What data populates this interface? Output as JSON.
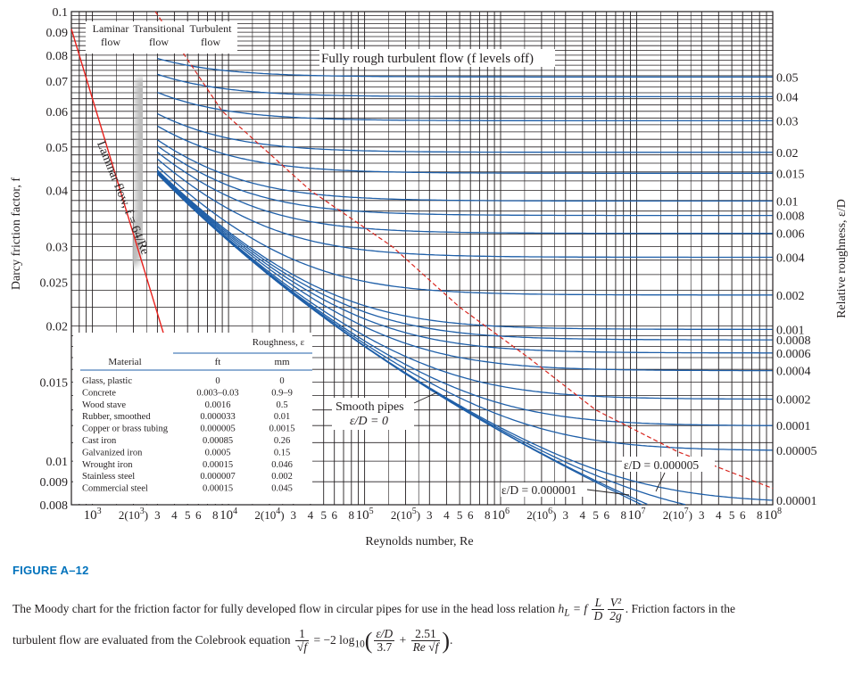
{
  "figure": {
    "label": "FIGURE A–12",
    "caption_part1": "The Moody chart for the friction factor for fully developed flow in circular pipes for use in the head loss relation",
    "head_loss_lhs": "h",
    "head_loss_sub": "L",
    "head_loss_eq": " = f",
    "frac_L": "L",
    "frac_D": "D",
    "frac_V2": "V²",
    "frac_2g": "2g",
    "caption_part2": ". Friction factors in the",
    "caption_part3": "turbulent flow are evaluated from the Colebrook equation",
    "cole_one": "1",
    "cole_sqrtf": "√f",
    "cole_mid": " = −2 log",
    "cole_sub": "10",
    "cole_eD": "ε/D",
    "cole_37": "3.7",
    "cole_251": "2.51",
    "cole_resf": "Re √f",
    "cole_end": "."
  },
  "chart_data": {
    "type": "line",
    "title": "",
    "xlabel": "Reynolds number, Re",
    "ylabel": "Darcy friction factor, f",
    "ylabel_right": "Relative roughness, ε/D",
    "x_scale": "log",
    "y_scale": "log",
    "xlim": [
      700,
      100000000
    ],
    "ylim": [
      0.008,
      0.1
    ],
    "y_ticks": [
      0.1,
      0.09,
      0.08,
      0.07,
      0.06,
      0.05,
      0.04,
      0.03,
      0.025,
      0.02,
      0.015,
      0.01,
      0.009,
      0.008
    ],
    "y_tick_labels": [
      "0.1",
      "0.09",
      "0.08",
      "0.07",
      "0.06",
      "0.05",
      "0.04",
      "0.03",
      "0.025",
      "0.02",
      "0.015",
      "0.01",
      "0.009",
      "0.008"
    ],
    "x_ticks": [
      {
        "v": 1000,
        "t": "10",
        "sup": "3"
      },
      {
        "v": 2000,
        "t": "2(10",
        "sup": "3",
        ")": ")"
      },
      {
        "v": 3000,
        "t": "3"
      },
      {
        "v": 4000,
        "t": "4"
      },
      {
        "v": 5000,
        "t": "5"
      },
      {
        "v": 6000,
        "t": "6"
      },
      {
        "v": 8000,
        "t": "8"
      },
      {
        "v": 10000,
        "t": "10",
        "sup": "4"
      },
      {
        "v": 20000,
        "t": "2(10",
        "sup": "4",
        ")": ")"
      },
      {
        "v": 30000,
        "t": "3"
      },
      {
        "v": 40000,
        "t": "4"
      },
      {
        "v": 50000,
        "t": "5"
      },
      {
        "v": 60000,
        "t": "6"
      },
      {
        "v": 80000,
        "t": "8"
      },
      {
        "v": 100000,
        "t": "10",
        "sup": "5"
      },
      {
        "v": 200000,
        "t": "2(10",
        "sup": "5",
        ")": ")"
      },
      {
        "v": 300000,
        "t": "3"
      },
      {
        "v": 400000,
        "t": "4"
      },
      {
        "v": 500000,
        "t": "5"
      },
      {
        "v": 600000,
        "t": "6"
      },
      {
        "v": 800000,
        "t": "8"
      },
      {
        "v": 1000000,
        "t": "10",
        "sup": "6"
      },
      {
        "v": 2000000,
        "t": "2(10",
        "sup": "6",
        ")": ")"
      },
      {
        "v": 3000000,
        "t": "3"
      },
      {
        "v": 4000000,
        "t": "4"
      },
      {
        "v": 5000000,
        "t": "5"
      },
      {
        "v": 6000000,
        "t": "6"
      },
      {
        "v": 8000000,
        "t": "8"
      },
      {
        "v": 10000000,
        "t": "10",
        "sup": "7"
      },
      {
        "v": 20000000,
        "t": "2(10",
        "sup": "7",
        ")": ")"
      },
      {
        "v": 30000000,
        "t": "3"
      },
      {
        "v": 40000000,
        "t": "4"
      },
      {
        "v": 50000000,
        "t": "5"
      },
      {
        "v": 60000000,
        "t": "6"
      },
      {
        "v": 80000000,
        "t": "8"
      },
      {
        "v": 100000000,
        "t": "10",
        "sup": "8"
      }
    ],
    "roughness_series": [
      0.05,
      0.04,
      0.03,
      0.02,
      0.015,
      0.01,
      0.008,
      0.006,
      0.004,
      0.002,
      0.001,
      0.0008,
      0.0006,
      0.0004,
      0.0002,
      0.0001,
      5e-05,
      1e-05
    ],
    "roughness_labels": [
      "0.05",
      "0.04",
      "0.03",
      "0.02",
      "0.015",
      "0.01",
      "0.008",
      "0.006",
      "0.004",
      "0.002",
      "0.001",
      "0.0008",
      "0.0006",
      "0.0004",
      "0.0002",
      "0.0001",
      "0.00005",
      "0.00001"
    ],
    "extra_curves": [
      5e-06,
      1e-06,
      0
    ],
    "laminar": {
      "formula": "f = 64/Re",
      "label": "Laminar flow, f = 64/Re",
      "re_min": 700,
      "re_max": 4000
    },
    "regime_labels": {
      "laminar": [
        "Laminar",
        "flow"
      ],
      "transitional": [
        "Transitional",
        "flow"
      ],
      "turbulent": [
        "Turbulent",
        "flow"
      ]
    },
    "annotations": {
      "fully_rough": "Fully rough turbulent flow (f levels off)",
      "smooth1": "Smooth pipes",
      "smooth2": "ε/D = 0",
      "ed5": "ε/D = 0.000005",
      "ed1": "ε/D = 0.000001"
    },
    "table": {
      "header_group": "Roughness, ε",
      "col_material": "Material",
      "col_ft": "ft",
      "col_mm": "mm",
      "rows": [
        {
          "material": "Glass, plastic",
          "ft": "0",
          "mm": "0"
        },
        {
          "material": "Concrete",
          "ft": "0.003–0.03",
          "mm": "0.9–9"
        },
        {
          "material": "Wood stave",
          "ft": "0.0016",
          "mm": "0.5"
        },
        {
          "material": "Rubber, smoothed",
          "ft": "0.000033",
          "mm": "0.01"
        },
        {
          "material": "Copper or brass tubing",
          "ft": "0.000005",
          "mm": "0.0015"
        },
        {
          "material": "Cast iron",
          "ft": "0.00085",
          "mm": "0.26"
        },
        {
          "material": "Galvanized iron",
          "ft": "0.0005",
          "mm": "0.15"
        },
        {
          "material": "Wrought iron",
          "ft": "0.00015",
          "mm": "0.046"
        },
        {
          "material": "Stainless steel",
          "ft": "0.000007",
          "mm": "0.002"
        },
        {
          "material": "Commercial steel",
          "ft": "0.00015",
          "mm": "0.045"
        }
      ]
    },
    "colors": {
      "curve": "#1f5fa8",
      "laminar": "#e8201c",
      "rough_boundary": "#d8261f",
      "grid": "#231f20",
      "table_rule": "#1f5fa8"
    }
  }
}
